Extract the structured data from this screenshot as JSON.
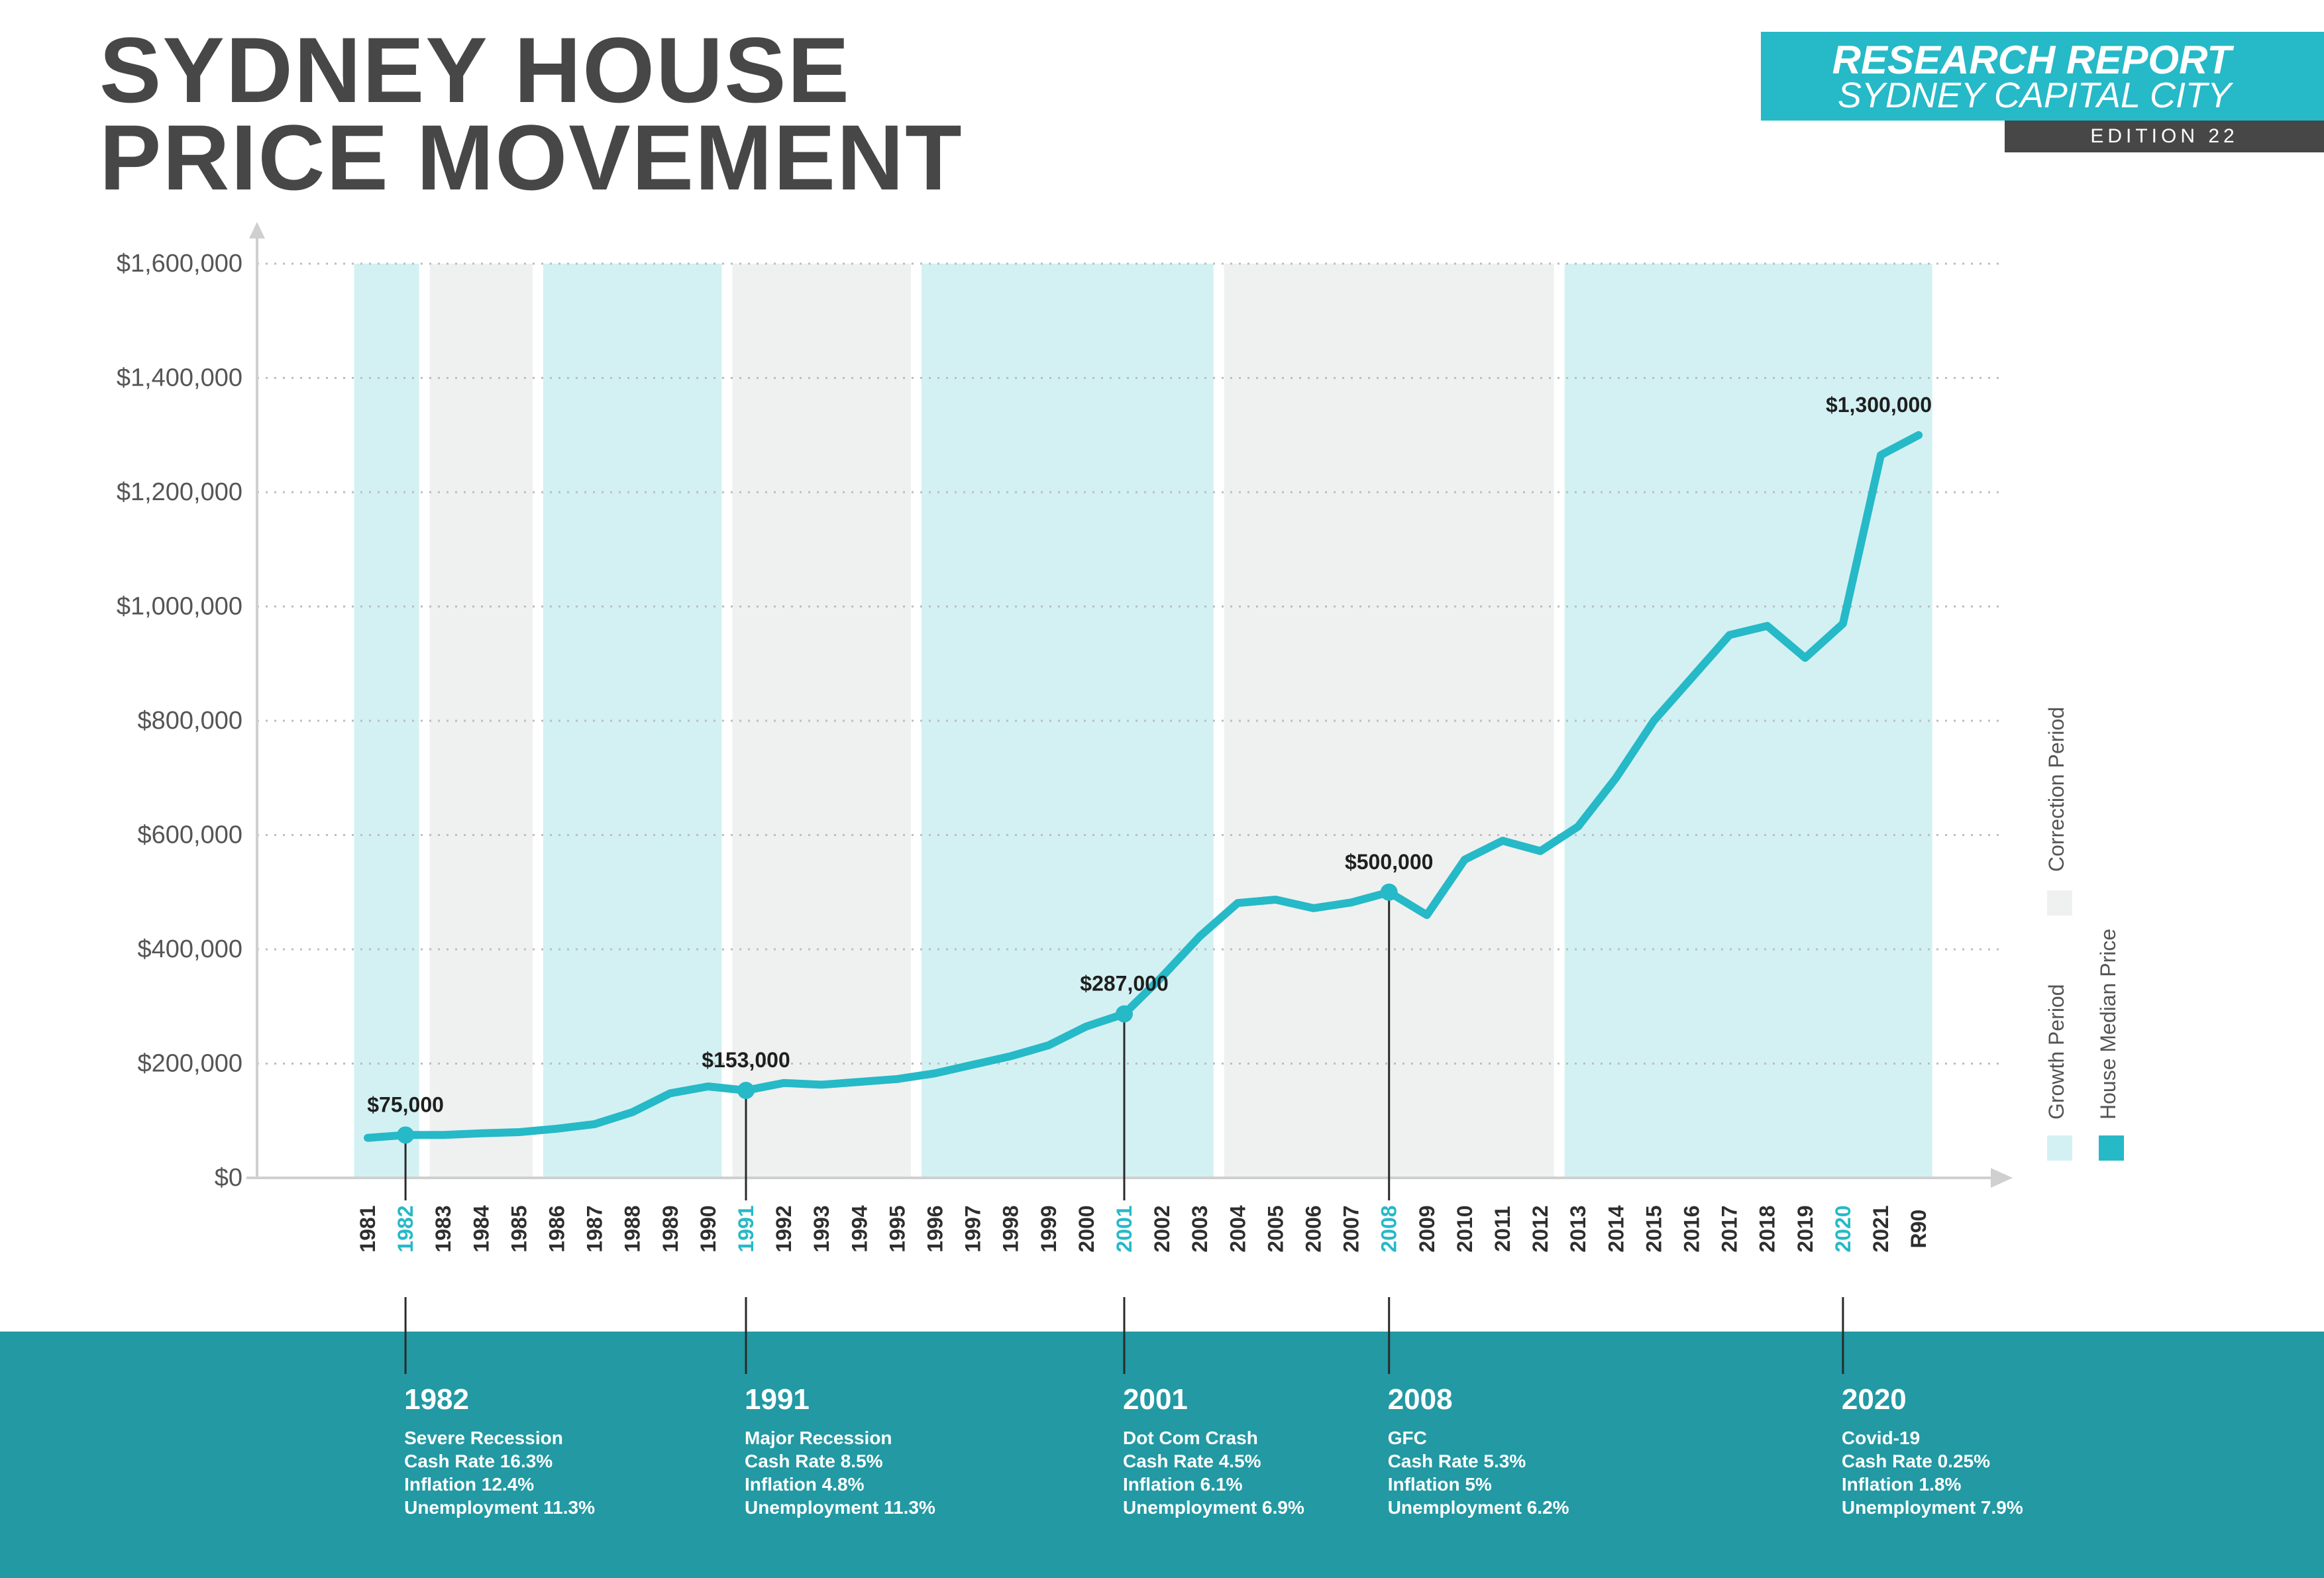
{
  "header": {
    "title_line1": "SYDNEY HOUSE",
    "title_line2": "PRICE MOVEMENT",
    "report_title": "RESEARCH REPORT",
    "report_subtitle": "SYDNEY CAPITAL CITY",
    "edition": "EDITION 22"
  },
  "colors": {
    "accent": "#26b9c7",
    "growth_band": "#d3f1f3",
    "correction_band": "#eff1f0",
    "bottom_band": "#2299a3",
    "dark": "#474747"
  },
  "chart_data": {
    "type": "line",
    "title": "SYDNEY HOUSE PRICE MOVEMENT",
    "x": [
      "1981",
      "1982",
      "1983",
      "1984",
      "1985",
      "1986",
      "1987",
      "1988",
      "1989",
      "1990",
      "1991",
      "1992",
      "1993",
      "1994",
      "1995",
      "1996",
      "1997",
      "1998",
      "1999",
      "2000",
      "2001",
      "2002",
      "2003",
      "2004",
      "2005",
      "2006",
      "2007",
      "2008",
      "2009",
      "2010",
      "2011",
      "2012",
      "2013",
      "2014",
      "2015",
      "2016",
      "2017",
      "2018",
      "2019",
      "2020",
      "2021",
      "R90"
    ],
    "highlight_x": [
      "1982",
      "1991",
      "2001",
      "2008",
      "2020"
    ],
    "series": [
      {
        "name": "House Median Price",
        "values": [
          70000,
          75000,
          75000,
          78000,
          80000,
          86000,
          94000,
          115000,
          148000,
          160000,
          153000,
          166000,
          163000,
          168000,
          173000,
          183000,
          198000,
          213000,
          232000,
          265000,
          287000,
          352000,
          423000,
          481000,
          487000,
          472000,
          482000,
          500000,
          460000,
          557000,
          590000,
          572000,
          615000,
          700000,
          800000,
          875000,
          950000,
          966000,
          910000,
          970000,
          1265000,
          1300000
        ]
      }
    ],
    "y_ticks": [
      "$0",
      "$200,000",
      "$400,000",
      "$600,000",
      "$800,000",
      "$1,000,000",
      "$1,200,000",
      "$1,400,000",
      "$1,600,000"
    ],
    "ylim": [
      0,
      1600000
    ],
    "grid": "horizontal-dotted",
    "periods": [
      {
        "type": "growth",
        "from": "1981",
        "to": "1982"
      },
      {
        "type": "correction",
        "from": "1983",
        "to": "1985"
      },
      {
        "type": "growth",
        "from": "1986",
        "to": "1990"
      },
      {
        "type": "correction",
        "from": "1991",
        "to": "1995"
      },
      {
        "type": "growth",
        "from": "1996",
        "to": "2003"
      },
      {
        "type": "correction",
        "from": "2004",
        "to": "2012"
      },
      {
        "type": "growth",
        "from": "2013",
        "to": "R90"
      }
    ],
    "annotations": [
      {
        "x": "1982",
        "label": "$75,000"
      },
      {
        "x": "1991",
        "label": "$153,000"
      },
      {
        "x": "2001",
        "label": "$287,000"
      },
      {
        "x": "2008",
        "label": "$500,000"
      },
      {
        "x": "R90",
        "label": "$1,300,000"
      }
    ],
    "legend": {
      "placement": "right",
      "items": [
        {
          "label": "Growth Period",
          "color": "#d3f1f3"
        },
        {
          "label": "House Median Price",
          "color": "#26b9c7"
        },
        {
          "label": "Correction Period",
          "color": "#eff1f0"
        }
      ]
    }
  },
  "events": [
    {
      "year": "1982",
      "lines": [
        "Severe Recession",
        "Cash Rate 16.3%",
        "Inflation 12.4%",
        "Unemployment 11.3%"
      ]
    },
    {
      "year": "1991",
      "lines": [
        "Major Recession",
        "Cash Rate 8.5%",
        "Inflation 4.8%",
        "Unemployment 11.3%"
      ]
    },
    {
      "year": "2001",
      "lines": [
        "Dot Com Crash",
        "Cash Rate 4.5%",
        "Inflation 6.1%",
        "Unemployment 6.9%"
      ]
    },
    {
      "year": "2008",
      "lines": [
        "GFC",
        "Cash Rate 5.3%",
        "Inflation 5%",
        "Unemployment 6.2%"
      ]
    },
    {
      "year": "2020",
      "lines": [
        "Covid-19",
        "Cash Rate 0.25%",
        "Inflation 1.8%",
        "Unemployment 7.9%"
      ]
    }
  ]
}
